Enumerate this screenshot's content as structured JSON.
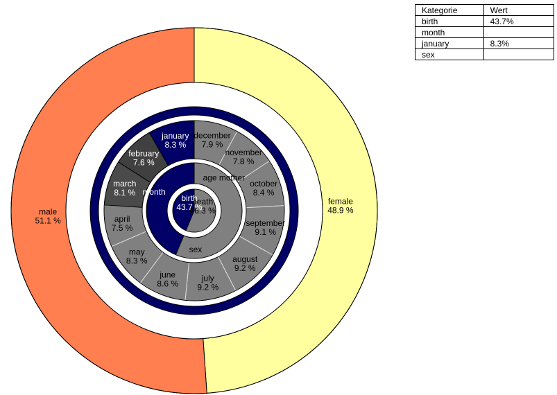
{
  "table": {
    "headers": [
      "Kategorie",
      "Wert"
    ],
    "rows": [
      [
        "birth",
        "43.7%"
      ],
      [
        "month",
        ""
      ],
      [
        "january",
        "8.3%"
      ],
      [
        "sex",
        ""
      ]
    ]
  },
  "chart_data": {
    "type": "pie",
    "subtype": "nested-donut",
    "rings": [
      {
        "name": "sex",
        "level": "outer",
        "slices": [
          {
            "label": "female",
            "value": 48.9,
            "color": "#ffffa0"
          },
          {
            "label": "male",
            "value": 51.1,
            "color": "#ff7f50"
          }
        ]
      },
      {
        "name": "sex",
        "level": "second",
        "label": "sex",
        "slices": [
          {
            "label": "sex",
            "value": 100,
            "color": "#000066"
          }
        ]
      },
      {
        "name": "month",
        "level": "third",
        "slices": [
          {
            "label": "december",
            "value": 7.9,
            "color": "#808080"
          },
          {
            "label": "november",
            "value": 7.8,
            "color": "#808080"
          },
          {
            "label": "october",
            "value": 8.4,
            "color": "#808080"
          },
          {
            "label": "september",
            "value": 9.1,
            "color": "#808080"
          },
          {
            "label": "august",
            "value": 9.2,
            "color": "#808080"
          },
          {
            "label": "july",
            "value": 9.2,
            "color": "#808080"
          },
          {
            "label": "june",
            "value": 8.6,
            "color": "#808080"
          },
          {
            "label": "may",
            "value": 8.3,
            "color": "#808080"
          },
          {
            "label": "april",
            "value": 7.5,
            "color": "#808080"
          },
          {
            "label": "march",
            "value": 8.1,
            "color": "#4a4a4a"
          },
          {
            "label": "february",
            "value": 7.6,
            "color": "#404040"
          },
          {
            "label": "january",
            "value": 8.3,
            "color": "#000066"
          }
        ]
      },
      {
        "name": "parent",
        "level": "fourth",
        "slices": [
          {
            "label": "age mother",
            "value": 56.3,
            "color": "#808080"
          },
          {
            "label": "month",
            "value": 43.7,
            "color": "#000066"
          }
        ],
        "extra_label": "sex"
      },
      {
        "name": "center",
        "level": "inner",
        "slices": [
          {
            "label": "death",
            "value": 56.3,
            "color": "#808080"
          },
          {
            "label": "birth",
            "value": 43.7,
            "color": "#000066"
          }
        ]
      }
    ],
    "legend": "none"
  }
}
